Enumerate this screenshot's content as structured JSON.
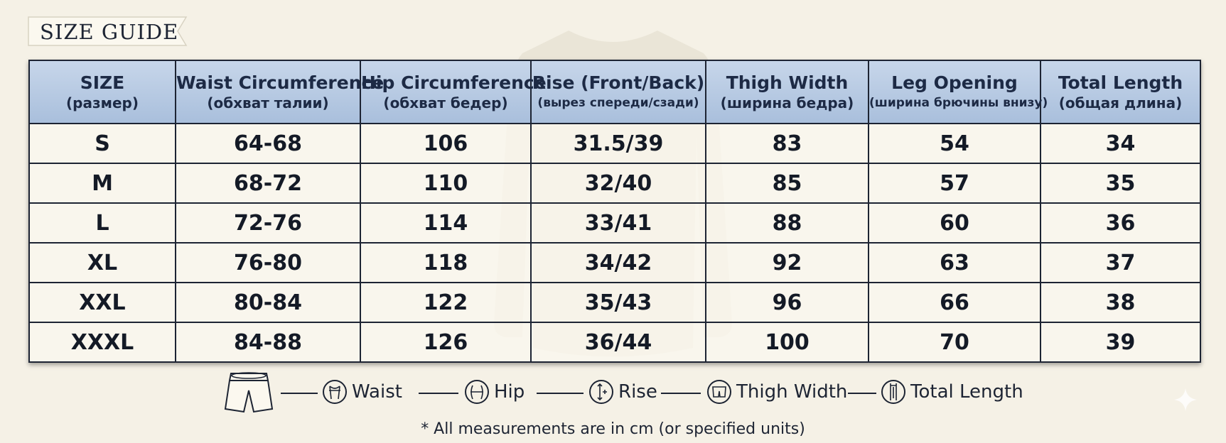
{
  "title": "SIZE GUIDE",
  "table": {
    "headers": [
      {
        "main": "SIZE",
        "sub": "(размер)"
      },
      {
        "main": "Waist Circumference",
        "sub": "(обхват талии)"
      },
      {
        "main": "Hip Circumference",
        "sub": "(обхват бедер)"
      },
      {
        "main": "Rise (Front/Back)",
        "sub": "(вырез спереди/сзади)"
      },
      {
        "main": "Thigh Width",
        "sub": "(ширина бедра)"
      },
      {
        "main": "Leg Opening",
        "sub": "(ширина брючины внизу)"
      },
      {
        "main": "Total Length",
        "sub": "(общая длина)"
      }
    ],
    "rows": [
      [
        "S",
        "64-68",
        "106",
        "31.5/39",
        "83",
        "54",
        "34"
      ],
      [
        "M",
        "68-72",
        "110",
        "32/40",
        "85",
        "57",
        "35"
      ],
      [
        "L",
        "72-76",
        "114",
        "33/41",
        "88",
        "60",
        "36"
      ],
      [
        "XL",
        "76-80",
        "118",
        "34/42",
        "92",
        "63",
        "37"
      ],
      [
        "XXL",
        "80-84",
        "122",
        "35/43",
        "96",
        "66",
        "38"
      ],
      [
        "XXXL",
        "84-88",
        "126",
        "36/44",
        "100",
        "70",
        "39"
      ]
    ]
  },
  "legend": {
    "shorts_icon": "shorts-icon",
    "items": [
      {
        "label": "Waist",
        "icon": "waist-icon"
      },
      {
        "label": "Hip",
        "icon": "hip-icon"
      },
      {
        "label": "Rise",
        "icon": "rise-icon"
      },
      {
        "label": "Thigh Width",
        "icon": "thigh-width-icon"
      },
      {
        "label": "Total Length",
        "icon": "total-length-icon"
      }
    ]
  },
  "footnote": "* All measurements are in cm (or specified units)",
  "colors": {
    "background": "#f5f1e6",
    "header_fill": "#b7c9e2",
    "border": "#1d2433",
    "text": "#1a2233"
  }
}
